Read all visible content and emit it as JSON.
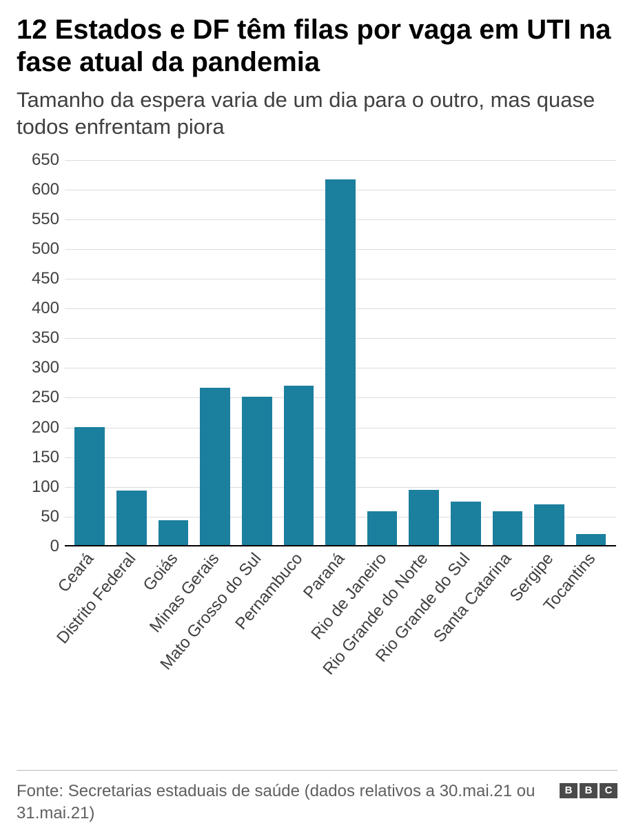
{
  "title": "12 Estados e DF têm filas por vaga em UTI na fase atual da pandemia",
  "subtitle": "Tamanho da espera varia de um dia para o outro, mas quase todos enfrentam piora",
  "source": "Fonte: Secretarias estaduais de saúde (dados relativos a 30.mai.21 ou 31.mai.21)",
  "logo_letters": [
    "B",
    "B",
    "C"
  ],
  "chart": {
    "type": "bar",
    "categories": [
      "Ceará",
      "Distrito Federal",
      "Goiás",
      "Minas Gerais",
      "Mato Grosso do Sul",
      "Pernambuco",
      "Paraná",
      "Rio de Janeiro",
      "Rio Grande do Norte",
      "Rio Grande do Sul",
      "Santa Catarina",
      "Sergipe",
      "Tocantins"
    ],
    "values": [
      198,
      92,
      42,
      265,
      250,
      268,
      615,
      57,
      93,
      73,
      57,
      68,
      19
    ],
    "bar_color": "#1b7f9e",
    "ylim": [
      0,
      650
    ],
    "ytick_step": 50,
    "grid_color": "#dcdcdc",
    "axis_color": "#000000",
    "background_color": "#ffffff",
    "tick_fontsize": 24,
    "tick_color": "#404040",
    "bar_width_ratio": 0.72,
    "xlabel_rotation_deg": -50
  },
  "colors": {
    "title": "#000000",
    "subtitle": "#404040",
    "source": "#606060",
    "footer_rule": "#b8b8b8",
    "logo_bg": "#4a4a4a",
    "logo_fg": "#ffffff"
  },
  "typography": {
    "title_fontsize": 40,
    "title_weight": 700,
    "subtitle_fontsize": 31,
    "source_fontsize": 24,
    "font_family": "Helvetica, Arial, sans-serif"
  }
}
